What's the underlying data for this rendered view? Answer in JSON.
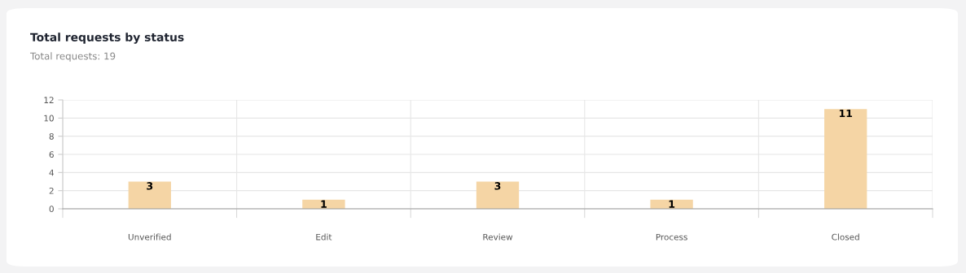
{
  "chart_data": {
    "type": "bar",
    "title": "Total requests by status",
    "subtitle": "Total requests: 19",
    "categories": [
      "Unverified",
      "Edit",
      "Review",
      "Process",
      "Closed"
    ],
    "values": [
      3,
      1,
      3,
      1,
      11
    ],
    "color": "#f5d5a5",
    "ylim": [
      0,
      12
    ],
    "yticks": [
      0,
      2,
      4,
      6,
      8,
      10,
      12
    ],
    "grid": true,
    "data_labels": true
  }
}
